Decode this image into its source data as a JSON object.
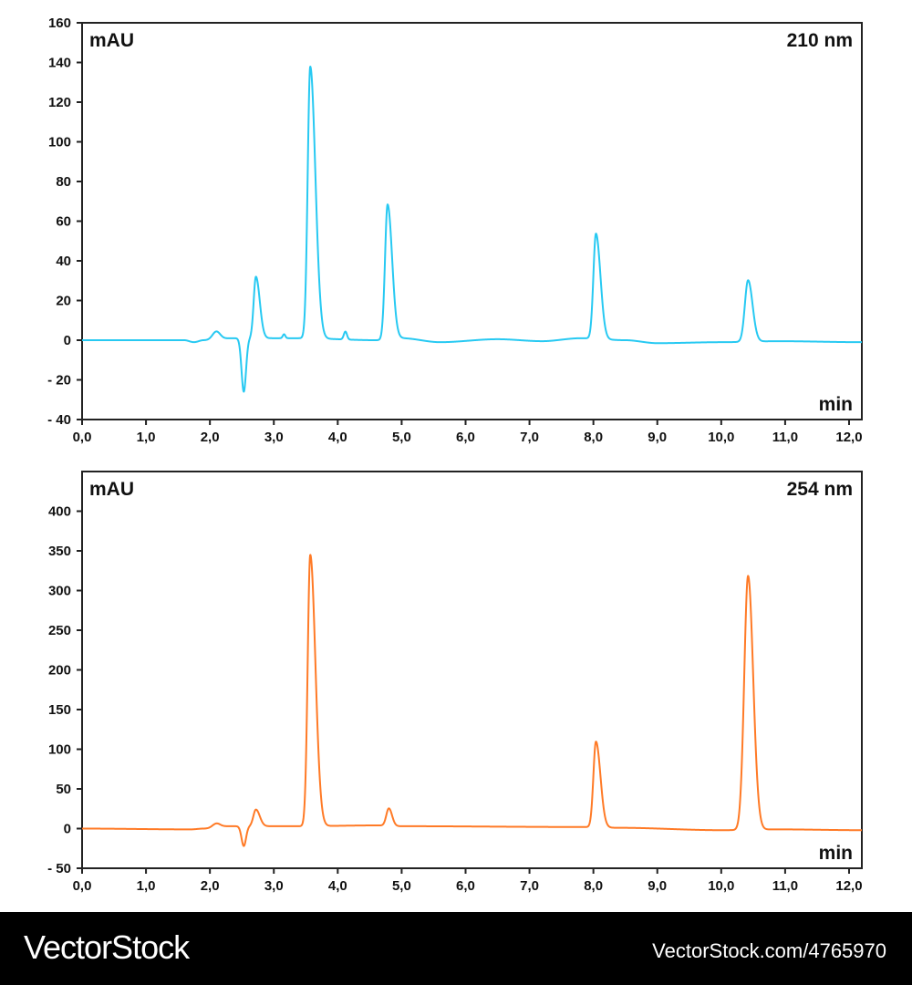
{
  "chart_data": [
    {
      "type": "line",
      "ylabel": "mAU",
      "xlabel": "min",
      "annotation": "210 nm",
      "color": "#27c9f2",
      "xlim": [
        0,
        12.2
      ],
      "ylim": [
        -40,
        160
      ],
      "x_ticks": [
        0,
        1,
        2,
        3,
        4,
        5,
        6,
        7,
        8,
        9,
        10,
        11,
        12
      ],
      "x_tick_labels": [
        "0,0",
        "1,0",
        "2,0",
        "3,0",
        "4,0",
        "5,0",
        "6,0",
        "7,0",
        "8,0",
        "9,0",
        "10,0",
        "11,0",
        "12,0"
      ],
      "y_ticks": [
        -40,
        -20,
        0,
        20,
        40,
        60,
        80,
        100,
        120,
        140,
        160
      ],
      "y_tick_labels": [
        "- 40",
        "- 20",
        "0",
        "20",
        "40",
        "60",
        "80",
        "100",
        "120",
        "140",
        "160"
      ],
      "grid": false,
      "baseline": [
        [
          0,
          0
        ],
        [
          1.6,
          0
        ],
        [
          1.75,
          -1
        ],
        [
          1.9,
          0
        ],
        [
          2.35,
          1
        ],
        [
          3.0,
          1
        ],
        [
          3.4,
          1
        ],
        [
          4.6,
          0
        ],
        [
          5.0,
          1
        ],
        [
          5.6,
          -1
        ],
        [
          6.5,
          0.5
        ],
        [
          7.2,
          -0.5
        ],
        [
          7.8,
          1
        ],
        [
          8.5,
          0
        ],
        [
          9.0,
          -1.5
        ],
        [
          10.0,
          -1
        ],
        [
          10.9,
          -0.5
        ],
        [
          12.2,
          -1
        ]
      ],
      "peaks": [
        {
          "t": 2.1,
          "height": 4,
          "sigma_left": 0.06,
          "sigma_right": 0.06
        },
        {
          "t": 2.53,
          "height": -27,
          "sigma_left": 0.035,
          "sigma_right": 0.035
        },
        {
          "t": 2.72,
          "height": 31,
          "sigma_left": 0.035,
          "sigma_right": 0.06
        },
        {
          "t": 3.16,
          "height": 2,
          "sigma_left": 0.02,
          "sigma_right": 0.02
        },
        {
          "t": 3.57,
          "height": 137,
          "sigma_left": 0.04,
          "sigma_right": 0.08
        },
        {
          "t": 4.12,
          "height": 4,
          "sigma_left": 0.025,
          "sigma_right": 0.025
        },
        {
          "t": 4.78,
          "height": 68,
          "sigma_left": 0.04,
          "sigma_right": 0.07
        },
        {
          "t": 8.04,
          "height": 53,
          "sigma_left": 0.04,
          "sigma_right": 0.07
        },
        {
          "t": 10.42,
          "height": 31,
          "sigma_left": 0.05,
          "sigma_right": 0.07
        }
      ]
    },
    {
      "type": "line",
      "ylabel": "mAU",
      "xlabel": "min",
      "annotation": "254 nm",
      "color": "#ff7a26",
      "xlim": [
        0,
        12.2
      ],
      "ylim": [
        -50,
        450
      ],
      "x_ticks": [
        0,
        1,
        2,
        3,
        4,
        5,
        6,
        7,
        8,
        9,
        10,
        11,
        12
      ],
      "x_tick_labels": [
        "0,0",
        "1,0",
        "2,0",
        "3,0",
        "4,0",
        "5,0",
        "6,0",
        "7,0",
        "8,0",
        "9,0",
        "10,0",
        "11,0",
        "12,0"
      ],
      "y_ticks": [
        -50,
        0,
        50,
        100,
        150,
        200,
        250,
        300,
        350,
        400
      ],
      "y_tick_labels": [
        "- 50",
        "0",
        "50",
        "100",
        "150",
        "200",
        "250",
        "300",
        "350",
        "400"
      ],
      "grid": false,
      "baseline": [
        [
          0,
          0
        ],
        [
          1.7,
          -1
        ],
        [
          1.9,
          0
        ],
        [
          2.3,
          3
        ],
        [
          3.4,
          3
        ],
        [
          4.6,
          4
        ],
        [
          5.0,
          3
        ],
        [
          7.8,
          2
        ],
        [
          8.4,
          1
        ],
        [
          10.0,
          -2
        ],
        [
          10.9,
          -1
        ],
        [
          12.2,
          -2
        ]
      ],
      "peaks": [
        {
          "t": 2.1,
          "height": 5,
          "sigma_left": 0.06,
          "sigma_right": 0.06
        },
        {
          "t": 2.53,
          "height": -25,
          "sigma_left": 0.035,
          "sigma_right": 0.035
        },
        {
          "t": 2.72,
          "height": 21,
          "sigma_left": 0.04,
          "sigma_right": 0.06
        },
        {
          "t": 3.57,
          "height": 342,
          "sigma_left": 0.04,
          "sigma_right": 0.08
        },
        {
          "t": 4.8,
          "height": 22,
          "sigma_left": 0.04,
          "sigma_right": 0.05
        },
        {
          "t": 8.04,
          "height": 108,
          "sigma_left": 0.04,
          "sigma_right": 0.07
        },
        {
          "t": 10.42,
          "height": 320,
          "sigma_left": 0.06,
          "sigma_right": 0.08
        }
      ]
    }
  ],
  "footer": {
    "logo": "VectorStock",
    "url": "VectorStock.com/4765970"
  }
}
